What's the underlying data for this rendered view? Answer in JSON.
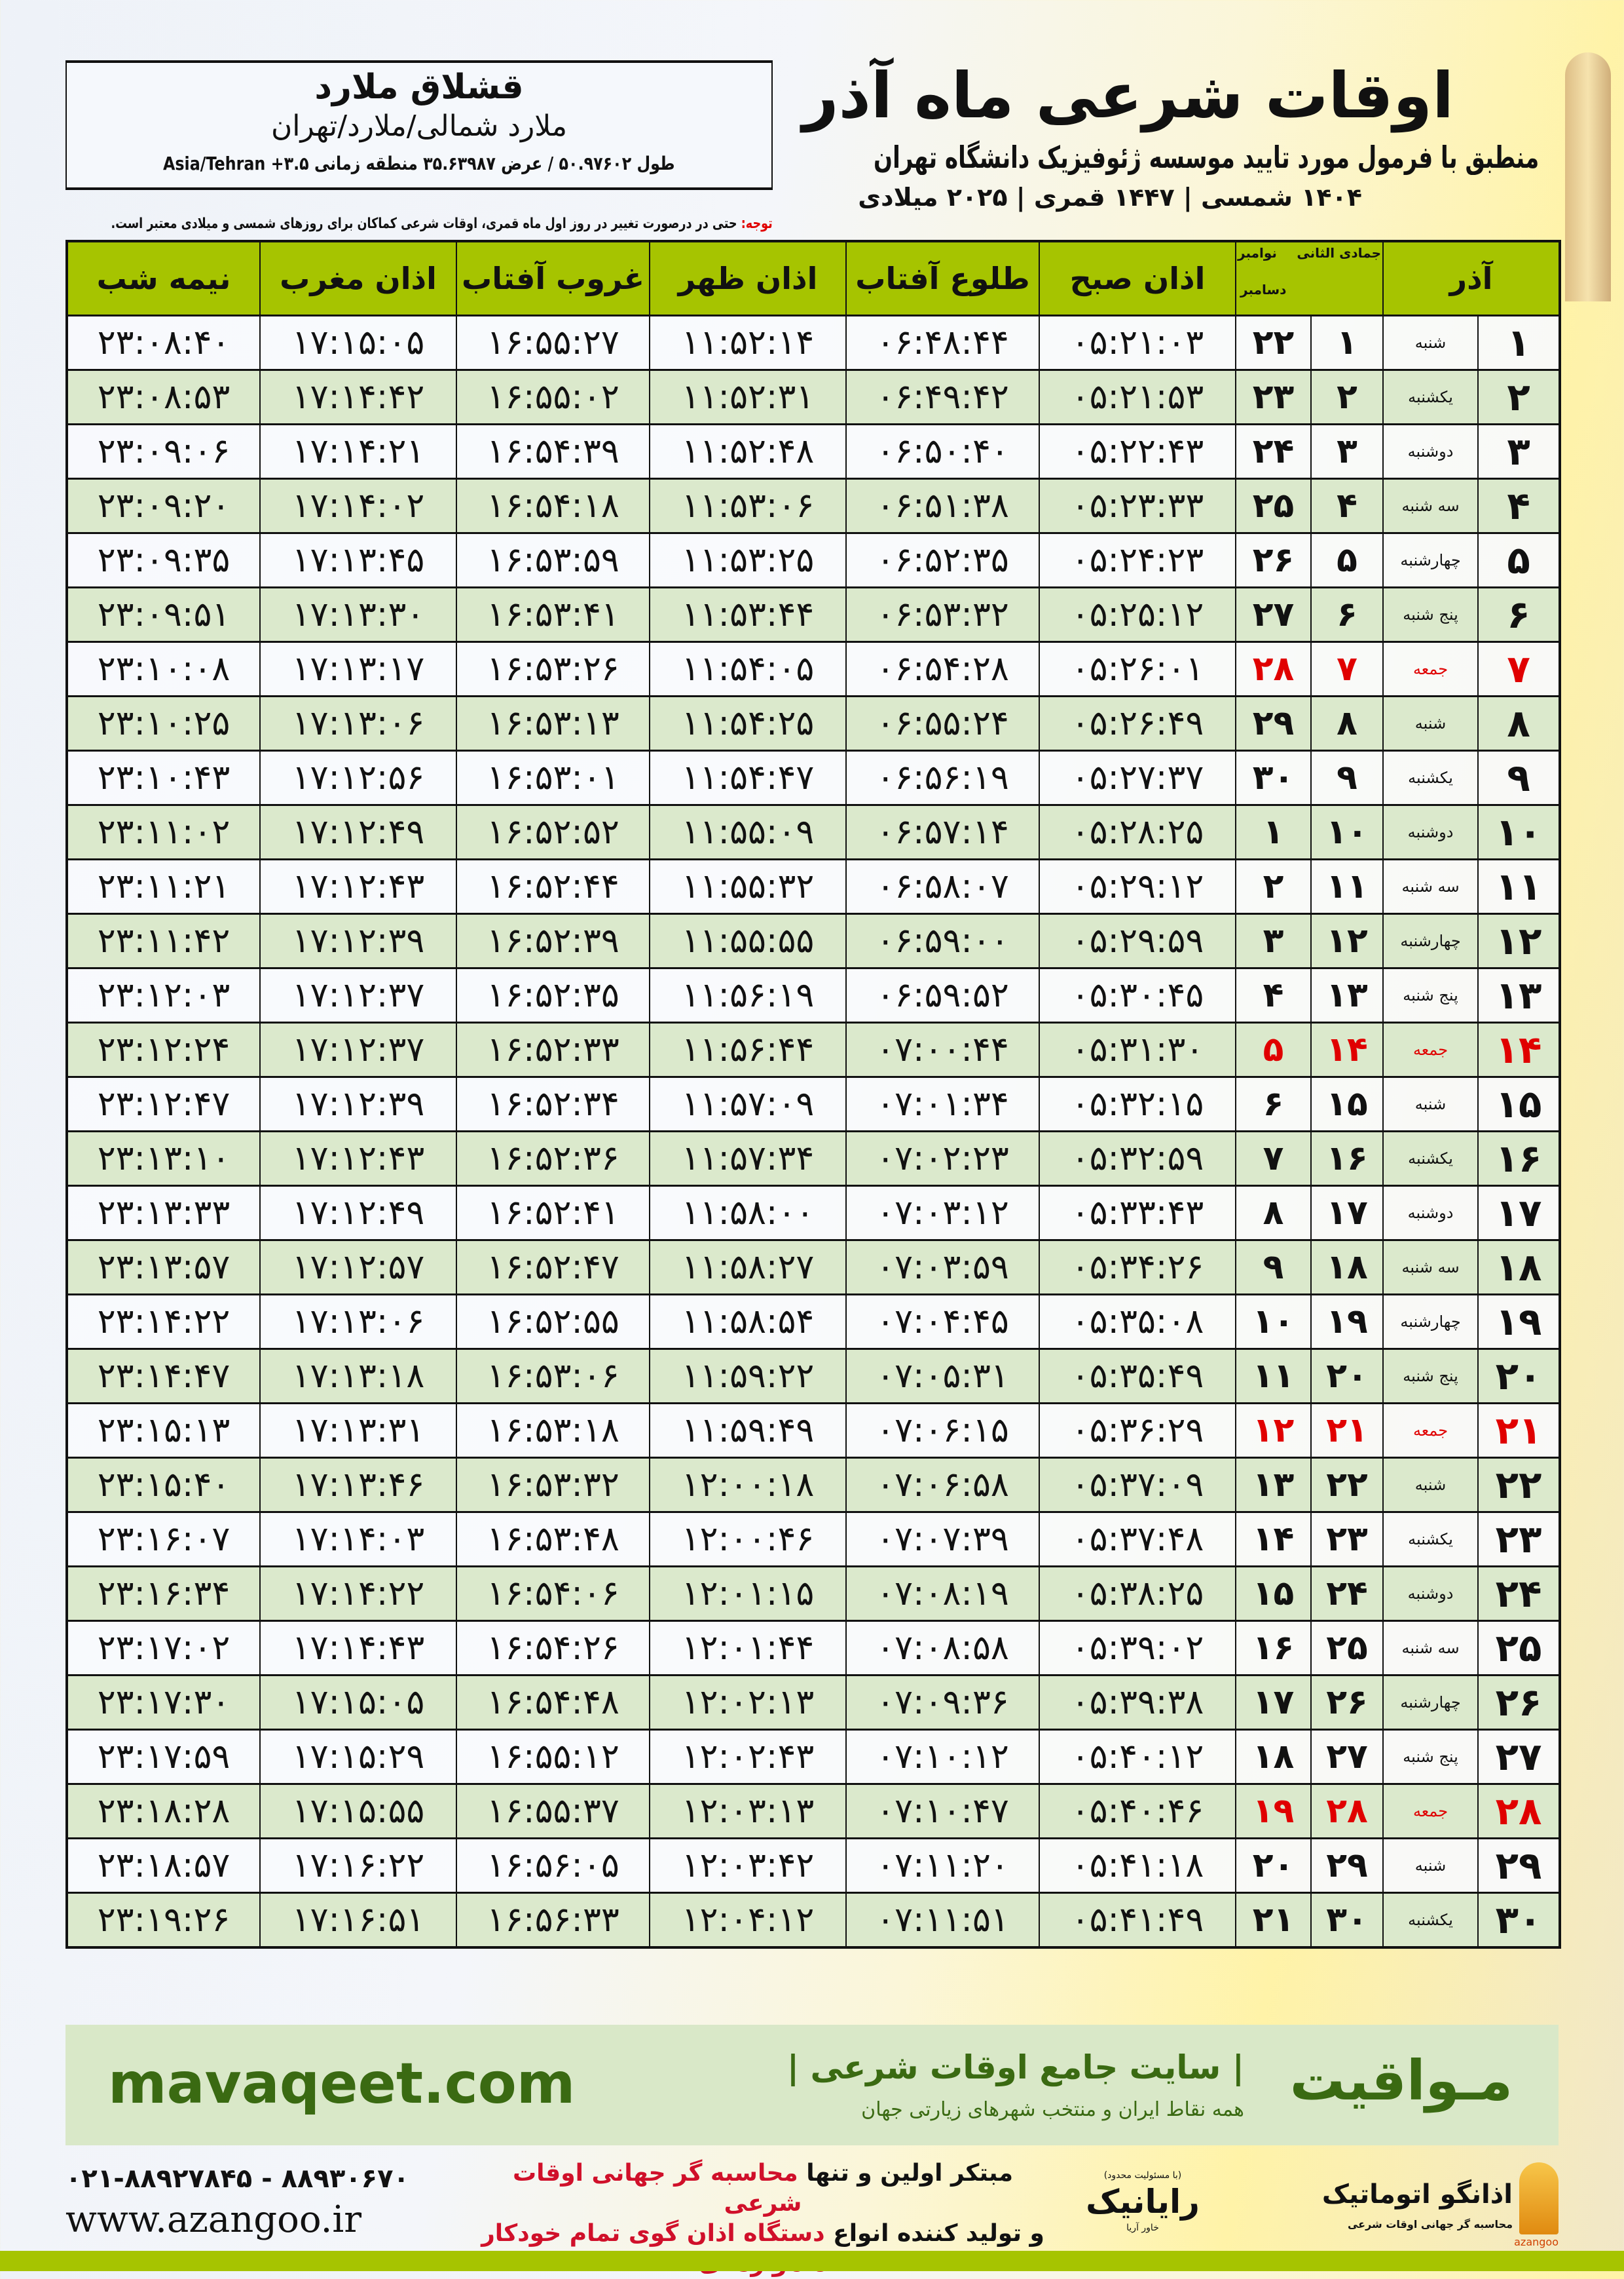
{
  "header": {
    "title": "اوقات شرعی ماه آذر",
    "subtitle": "منطبق با فرمول مورد تایید موسسه ژئوفیزیک دانشگاه تهران",
    "dateline": "۱۴۰۴ شمسی | ۱۴۴۷ قمری | ۲۰۲۵ میلادی"
  },
  "location": {
    "name": "قشلاق ملارد",
    "path": "ملارد شمالی/ملارد/تهران",
    "coords": "طول ۵۰.۹۷۶۰۲ / عرض ۳۵.۶۳۹۸۷ منطقه زمانی ۳.۵+ Asia/Tehran"
  },
  "note": {
    "label": "توجه:",
    "text": " حتی در درصورت تغییر در روز اول ماه قمری، اوقات شرعی کماکان برای روزهای شمسی و میلادی معتبر است."
  },
  "table": {
    "headers": {
      "azar": "آذر",
      "jumada": "جمادی الثانی",
      "november": "نوامبر",
      "december": "دسامبر",
      "fajr": "اذان صبح",
      "sunrise": "طلوع آفتاب",
      "dhuhr": "اذان ظهر",
      "sunset": "غروب آفتاب",
      "maghrib": "اذان مغرب",
      "midnight": "نیمه شب"
    },
    "colors": {
      "header": "#a6c400",
      "alt_row": "#dbe9cc",
      "holiday": "#e00000"
    },
    "rows": [
      {
        "azar": "۱",
        "weekday": "شنبه",
        "jumada": "۱",
        "greg": "۲۲",
        "fajr": "۰۵:۲۱:۰۳",
        "sunrise": "۰۶:۴۸:۴۴",
        "dhuhr": "۱۱:۵۲:۱۴",
        "sunset": "۱۶:۵۵:۲۷",
        "maghrib": "۱۷:۱۵:۰۵",
        "midnight": "۲۳:۰۸:۴۰",
        "holiday": false
      },
      {
        "azar": "۲",
        "weekday": "یکشنبه",
        "jumada": "۲",
        "greg": "۲۳",
        "fajr": "۰۵:۲۱:۵۳",
        "sunrise": "۰۶:۴۹:۴۲",
        "dhuhr": "۱۱:۵۲:۳۱",
        "sunset": "۱۶:۵۵:۰۲",
        "maghrib": "۱۷:۱۴:۴۲",
        "midnight": "۲۳:۰۸:۵۳",
        "holiday": false
      },
      {
        "azar": "۳",
        "weekday": "دوشنبه",
        "jumada": "۳",
        "greg": "۲۴",
        "fajr": "۰۵:۲۲:۴۳",
        "sunrise": "۰۶:۵۰:۴۰",
        "dhuhr": "۱۱:۵۲:۴۸",
        "sunset": "۱۶:۵۴:۳۹",
        "maghrib": "۱۷:۱۴:۲۱",
        "midnight": "۲۳:۰۹:۰۶",
        "holiday": false
      },
      {
        "azar": "۴",
        "weekday": "سه شنبه",
        "jumada": "۴",
        "greg": "۲۵",
        "fajr": "۰۵:۲۳:۳۳",
        "sunrise": "۰۶:۵۱:۳۸",
        "dhuhr": "۱۱:۵۳:۰۶",
        "sunset": "۱۶:۵۴:۱۸",
        "maghrib": "۱۷:۱۴:۰۲",
        "midnight": "۲۳:۰۹:۲۰",
        "holiday": false
      },
      {
        "azar": "۵",
        "weekday": "چهارشنبه",
        "jumada": "۵",
        "greg": "۲۶",
        "fajr": "۰۵:۲۴:۲۳",
        "sunrise": "۰۶:۵۲:۳۵",
        "dhuhr": "۱۱:۵۳:۲۵",
        "sunset": "۱۶:۵۳:۵۹",
        "maghrib": "۱۷:۱۳:۴۵",
        "midnight": "۲۳:۰۹:۳۵",
        "holiday": false
      },
      {
        "azar": "۶",
        "weekday": "پنج شنبه",
        "jumada": "۶",
        "greg": "۲۷",
        "fajr": "۰۵:۲۵:۱۲",
        "sunrise": "۰۶:۵۳:۳۲",
        "dhuhr": "۱۱:۵۳:۴۴",
        "sunset": "۱۶:۵۳:۴۱",
        "maghrib": "۱۷:۱۳:۳۰",
        "midnight": "۲۳:۰۹:۵۱",
        "holiday": false
      },
      {
        "azar": "۷",
        "weekday": "جمعه",
        "jumada": "۷",
        "greg": "۲۸",
        "fajr": "۰۵:۲۶:۰۱",
        "sunrise": "۰۶:۵۴:۲۸",
        "dhuhr": "۱۱:۵۴:۰۵",
        "sunset": "۱۶:۵۳:۲۶",
        "maghrib": "۱۷:۱۳:۱۷",
        "midnight": "۲۳:۱۰:۰۸",
        "holiday": true
      },
      {
        "azar": "۸",
        "weekday": "شنبه",
        "jumada": "۸",
        "greg": "۲۹",
        "fajr": "۰۵:۲۶:۴۹",
        "sunrise": "۰۶:۵۵:۲۴",
        "dhuhr": "۱۱:۵۴:۲۵",
        "sunset": "۱۶:۵۳:۱۳",
        "maghrib": "۱۷:۱۳:۰۶",
        "midnight": "۲۳:۱۰:۲۵",
        "holiday": false
      },
      {
        "azar": "۹",
        "weekday": "یکشنبه",
        "jumada": "۹",
        "greg": "۳۰",
        "fajr": "۰۵:۲۷:۳۷",
        "sunrise": "۰۶:۵۶:۱۹",
        "dhuhr": "۱۱:۵۴:۴۷",
        "sunset": "۱۶:۵۳:۰۱",
        "maghrib": "۱۷:۱۲:۵۶",
        "midnight": "۲۳:۱۰:۴۳",
        "holiday": false
      },
      {
        "azar": "۱۰",
        "weekday": "دوشنبه",
        "jumada": "۱۰",
        "greg": "۱",
        "fajr": "۰۵:۲۸:۲۵",
        "sunrise": "۰۶:۵۷:۱۴",
        "dhuhr": "۱۱:۵۵:۰۹",
        "sunset": "۱۶:۵۲:۵۲",
        "maghrib": "۱۷:۱۲:۴۹",
        "midnight": "۲۳:۱۱:۰۲",
        "holiday": false
      },
      {
        "azar": "۱۱",
        "weekday": "سه شنبه",
        "jumada": "۱۱",
        "greg": "۲",
        "fajr": "۰۵:۲۹:۱۲",
        "sunrise": "۰۶:۵۸:۰۷",
        "dhuhr": "۱۱:۵۵:۳۲",
        "sunset": "۱۶:۵۲:۴۴",
        "maghrib": "۱۷:۱۲:۴۳",
        "midnight": "۲۳:۱۱:۲۱",
        "holiday": false
      },
      {
        "azar": "۱۲",
        "weekday": "چهارشنبه",
        "jumada": "۱۲",
        "greg": "۳",
        "fajr": "۰۵:۲۹:۵۹",
        "sunrise": "۰۶:۵۹:۰۰",
        "dhuhr": "۱۱:۵۵:۵۵",
        "sunset": "۱۶:۵۲:۳۹",
        "maghrib": "۱۷:۱۲:۳۹",
        "midnight": "۲۳:۱۱:۴۲",
        "holiday": false
      },
      {
        "azar": "۱۳",
        "weekday": "پنج شنبه",
        "jumada": "۱۳",
        "greg": "۴",
        "fajr": "۰۵:۳۰:۴۵",
        "sunrise": "۰۶:۵۹:۵۲",
        "dhuhr": "۱۱:۵۶:۱۹",
        "sunset": "۱۶:۵۲:۳۵",
        "maghrib": "۱۷:۱۲:۳۷",
        "midnight": "۲۳:۱۲:۰۳",
        "holiday": false
      },
      {
        "azar": "۱۴",
        "weekday": "جمعه",
        "jumada": "۱۴",
        "greg": "۵",
        "fajr": "۰۵:۳۱:۳۰",
        "sunrise": "۰۷:۰۰:۴۴",
        "dhuhr": "۱۱:۵۶:۴۴",
        "sunset": "۱۶:۵۲:۳۳",
        "maghrib": "۱۷:۱۲:۳۷",
        "midnight": "۲۳:۱۲:۲۴",
        "holiday": true
      },
      {
        "azar": "۱۵",
        "weekday": "شنبه",
        "jumada": "۱۵",
        "greg": "۶",
        "fajr": "۰۵:۳۲:۱۵",
        "sunrise": "۰۷:۰۱:۳۴",
        "dhuhr": "۱۱:۵۷:۰۹",
        "sunset": "۱۶:۵۲:۳۴",
        "maghrib": "۱۷:۱۲:۳۹",
        "midnight": "۲۳:۱۲:۴۷",
        "holiday": false
      },
      {
        "azar": "۱۶",
        "weekday": "یکشنبه",
        "jumada": "۱۶",
        "greg": "۷",
        "fajr": "۰۵:۳۲:۵۹",
        "sunrise": "۰۷:۰۲:۲۳",
        "dhuhr": "۱۱:۵۷:۳۴",
        "sunset": "۱۶:۵۲:۳۶",
        "maghrib": "۱۷:۱۲:۴۳",
        "midnight": "۲۳:۱۳:۱۰",
        "holiday": false
      },
      {
        "azar": "۱۷",
        "weekday": "دوشنبه",
        "jumada": "۱۷",
        "greg": "۸",
        "fajr": "۰۵:۳۳:۴۳",
        "sunrise": "۰۷:۰۳:۱۲",
        "dhuhr": "۱۱:۵۸:۰۰",
        "sunset": "۱۶:۵۲:۴۱",
        "maghrib": "۱۷:۱۲:۴۹",
        "midnight": "۲۳:۱۳:۳۳",
        "holiday": false
      },
      {
        "azar": "۱۸",
        "weekday": "سه شنبه",
        "jumada": "۱۸",
        "greg": "۹",
        "fajr": "۰۵:۳۴:۲۶",
        "sunrise": "۰۷:۰۳:۵۹",
        "dhuhr": "۱۱:۵۸:۲۷",
        "sunset": "۱۶:۵۲:۴۷",
        "maghrib": "۱۷:۱۲:۵۷",
        "midnight": "۲۳:۱۳:۵۷",
        "holiday": false
      },
      {
        "azar": "۱۹",
        "weekday": "چهارشنبه",
        "jumada": "۱۹",
        "greg": "۱۰",
        "fajr": "۰۵:۳۵:۰۸",
        "sunrise": "۰۷:۰۴:۴۵",
        "dhuhr": "۱۱:۵۸:۵۴",
        "sunset": "۱۶:۵۲:۵۵",
        "maghrib": "۱۷:۱۳:۰۶",
        "midnight": "۲۳:۱۴:۲۲",
        "holiday": false
      },
      {
        "azar": "۲۰",
        "weekday": "پنج شنبه",
        "jumada": "۲۰",
        "greg": "۱۱",
        "fajr": "۰۵:۳۵:۴۹",
        "sunrise": "۰۷:۰۵:۳۱",
        "dhuhr": "۱۱:۵۹:۲۲",
        "sunset": "۱۶:۵۳:۰۶",
        "maghrib": "۱۷:۱۳:۱۸",
        "midnight": "۲۳:۱۴:۴۷",
        "holiday": false
      },
      {
        "azar": "۲۱",
        "weekday": "جمعه",
        "jumada": "۲۱",
        "greg": "۱۲",
        "fajr": "۰۵:۳۶:۲۹",
        "sunrise": "۰۷:۰۶:۱۵",
        "dhuhr": "۱۱:۵۹:۴۹",
        "sunset": "۱۶:۵۳:۱۸",
        "maghrib": "۱۷:۱۳:۳۱",
        "midnight": "۲۳:۱۵:۱۳",
        "holiday": true
      },
      {
        "azar": "۲۲",
        "weekday": "شنبه",
        "jumada": "۲۲",
        "greg": "۱۳",
        "fajr": "۰۵:۳۷:۰۹",
        "sunrise": "۰۷:۰۶:۵۸",
        "dhuhr": "۱۲:۰۰:۱۸",
        "sunset": "۱۶:۵۳:۳۲",
        "maghrib": "۱۷:۱۳:۴۶",
        "midnight": "۲۳:۱۵:۴۰",
        "holiday": false
      },
      {
        "azar": "۲۳",
        "weekday": "یکشنبه",
        "jumada": "۲۳",
        "greg": "۱۴",
        "fajr": "۰۵:۳۷:۴۸",
        "sunrise": "۰۷:۰۷:۳۹",
        "dhuhr": "۱۲:۰۰:۴۶",
        "sunset": "۱۶:۵۳:۴۸",
        "maghrib": "۱۷:۱۴:۰۳",
        "midnight": "۲۳:۱۶:۰۷",
        "holiday": false
      },
      {
        "azar": "۲۴",
        "weekday": "دوشنبه",
        "jumada": "۲۴",
        "greg": "۱۵",
        "fajr": "۰۵:۳۸:۲۵",
        "sunrise": "۰۷:۰۸:۱۹",
        "dhuhr": "۱۲:۰۱:۱۵",
        "sunset": "۱۶:۵۴:۰۶",
        "maghrib": "۱۷:۱۴:۲۲",
        "midnight": "۲۳:۱۶:۳۴",
        "holiday": false
      },
      {
        "azar": "۲۵",
        "weekday": "سه شنبه",
        "jumada": "۲۵",
        "greg": "۱۶",
        "fajr": "۰۵:۳۹:۰۲",
        "sunrise": "۰۷:۰۸:۵۸",
        "dhuhr": "۱۲:۰۱:۴۴",
        "sunset": "۱۶:۵۴:۲۶",
        "maghrib": "۱۷:۱۴:۴۳",
        "midnight": "۲۳:۱۷:۰۲",
        "holiday": false
      },
      {
        "azar": "۲۶",
        "weekday": "چهارشنبه",
        "jumada": "۲۶",
        "greg": "۱۷",
        "fajr": "۰۵:۳۹:۳۸",
        "sunrise": "۰۷:۰۹:۳۶",
        "dhuhr": "۱۲:۰۲:۱۳",
        "sunset": "۱۶:۵۴:۴۸",
        "maghrib": "۱۷:۱۵:۰۵",
        "midnight": "۲۳:۱۷:۳۰",
        "holiday": false
      },
      {
        "azar": "۲۷",
        "weekday": "پنج شنبه",
        "jumada": "۲۷",
        "greg": "۱۸",
        "fajr": "۰۵:۴۰:۱۲",
        "sunrise": "۰۷:۱۰:۱۲",
        "dhuhr": "۱۲:۰۲:۴۳",
        "sunset": "۱۶:۵۵:۱۲",
        "maghrib": "۱۷:۱۵:۲۹",
        "midnight": "۲۳:۱۷:۵۹",
        "holiday": false
      },
      {
        "azar": "۲۸",
        "weekday": "جمعه",
        "jumada": "۲۸",
        "greg": "۱۹",
        "fajr": "۰۵:۴۰:۴۶",
        "sunrise": "۰۷:۱۰:۴۷",
        "dhuhr": "۱۲:۰۳:۱۳",
        "sunset": "۱۶:۵۵:۳۷",
        "maghrib": "۱۷:۱۵:۵۵",
        "midnight": "۲۳:۱۸:۲۸",
        "holiday": true
      },
      {
        "azar": "۲۹",
        "weekday": "شنبه",
        "jumada": "۲۹",
        "greg": "۲۰",
        "fajr": "۰۵:۴۱:۱۸",
        "sunrise": "۰۷:۱۱:۲۰",
        "dhuhr": "۱۲:۰۳:۴۲",
        "sunset": "۱۶:۵۶:۰۵",
        "maghrib": "۱۷:۱۶:۲۲",
        "midnight": "۲۳:۱۸:۵۷",
        "holiday": false
      },
      {
        "azar": "۳۰",
        "weekday": "یکشنبه",
        "jumada": "۳۰",
        "greg": "۲۱",
        "fajr": "۰۵:۴۱:۴۹",
        "sunrise": "۰۷:۱۱:۵۱",
        "dhuhr": "۱۲:۰۴:۱۲",
        "sunset": "۱۶:۵۶:۳۳",
        "maghrib": "۱۷:۱۶:۵۱",
        "midnight": "۲۳:۱۹:۲۶",
        "holiday": false
      }
    ]
  },
  "banner": {
    "brand": "مـواقیت",
    "tagline": "| سایت جامع اوقات شرعی |",
    "tagline2": "همه نقاط ایران و منتخب شهرهای زیارتی جهان",
    "site": "mavaqeet.com"
  },
  "footer": {
    "phone": "۰۲۱-۸۸۹۲۷۸۴۵ - ۸۸۹۳۰۶۷۰",
    "web": "www.azangoo.ir",
    "promo_line1_a": "مبتکر اولین و تنها ",
    "promo_line1_b": "محاسبه گر جهانی اوقات شرعی",
    "promo_line2_a": "و تولید کننده انواع ",
    "promo_line2_b": "دستگاه اذان گوی تمام خودکار ماهواره ای",
    "raynik_small": "(با مسئولیت محدود)",
    "raynik": "رایانیک",
    "raynik_sub": "خاور آریا",
    "azangoo_title": "اذانگو اتوماتیک",
    "azangoo_sub": "محاسبه گر جهانی اوقات شرعی",
    "azangoo_en": "azangoo"
  }
}
